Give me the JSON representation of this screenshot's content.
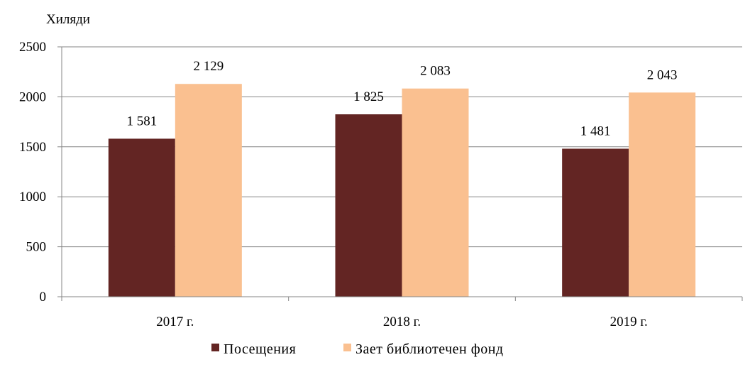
{
  "chart_data": {
    "type": "bar",
    "unit_label": "Хиляди",
    "categories": [
      "2017  г.",
      "2018  г.",
      "2019  г."
    ],
    "series": [
      {
        "name": "Посещения",
        "color": "#632523",
        "values": [
          1581,
          1825,
          1481
        ],
        "labels": [
          "1 581",
          "1 825",
          "1 481"
        ]
      },
      {
        "name": "Зает  библиотечен фонд",
        "color": "#FAC090",
        "values": [
          2129,
          2083,
          2043
        ],
        "labels": [
          "2 129",
          "2 083",
          "2 043"
        ]
      }
    ],
    "ylim": [
      0,
      2500
    ],
    "yticks": [
      0,
      500,
      1000,
      1500,
      2000,
      2500
    ],
    "grid": true,
    "legend_position": "bottom"
  }
}
